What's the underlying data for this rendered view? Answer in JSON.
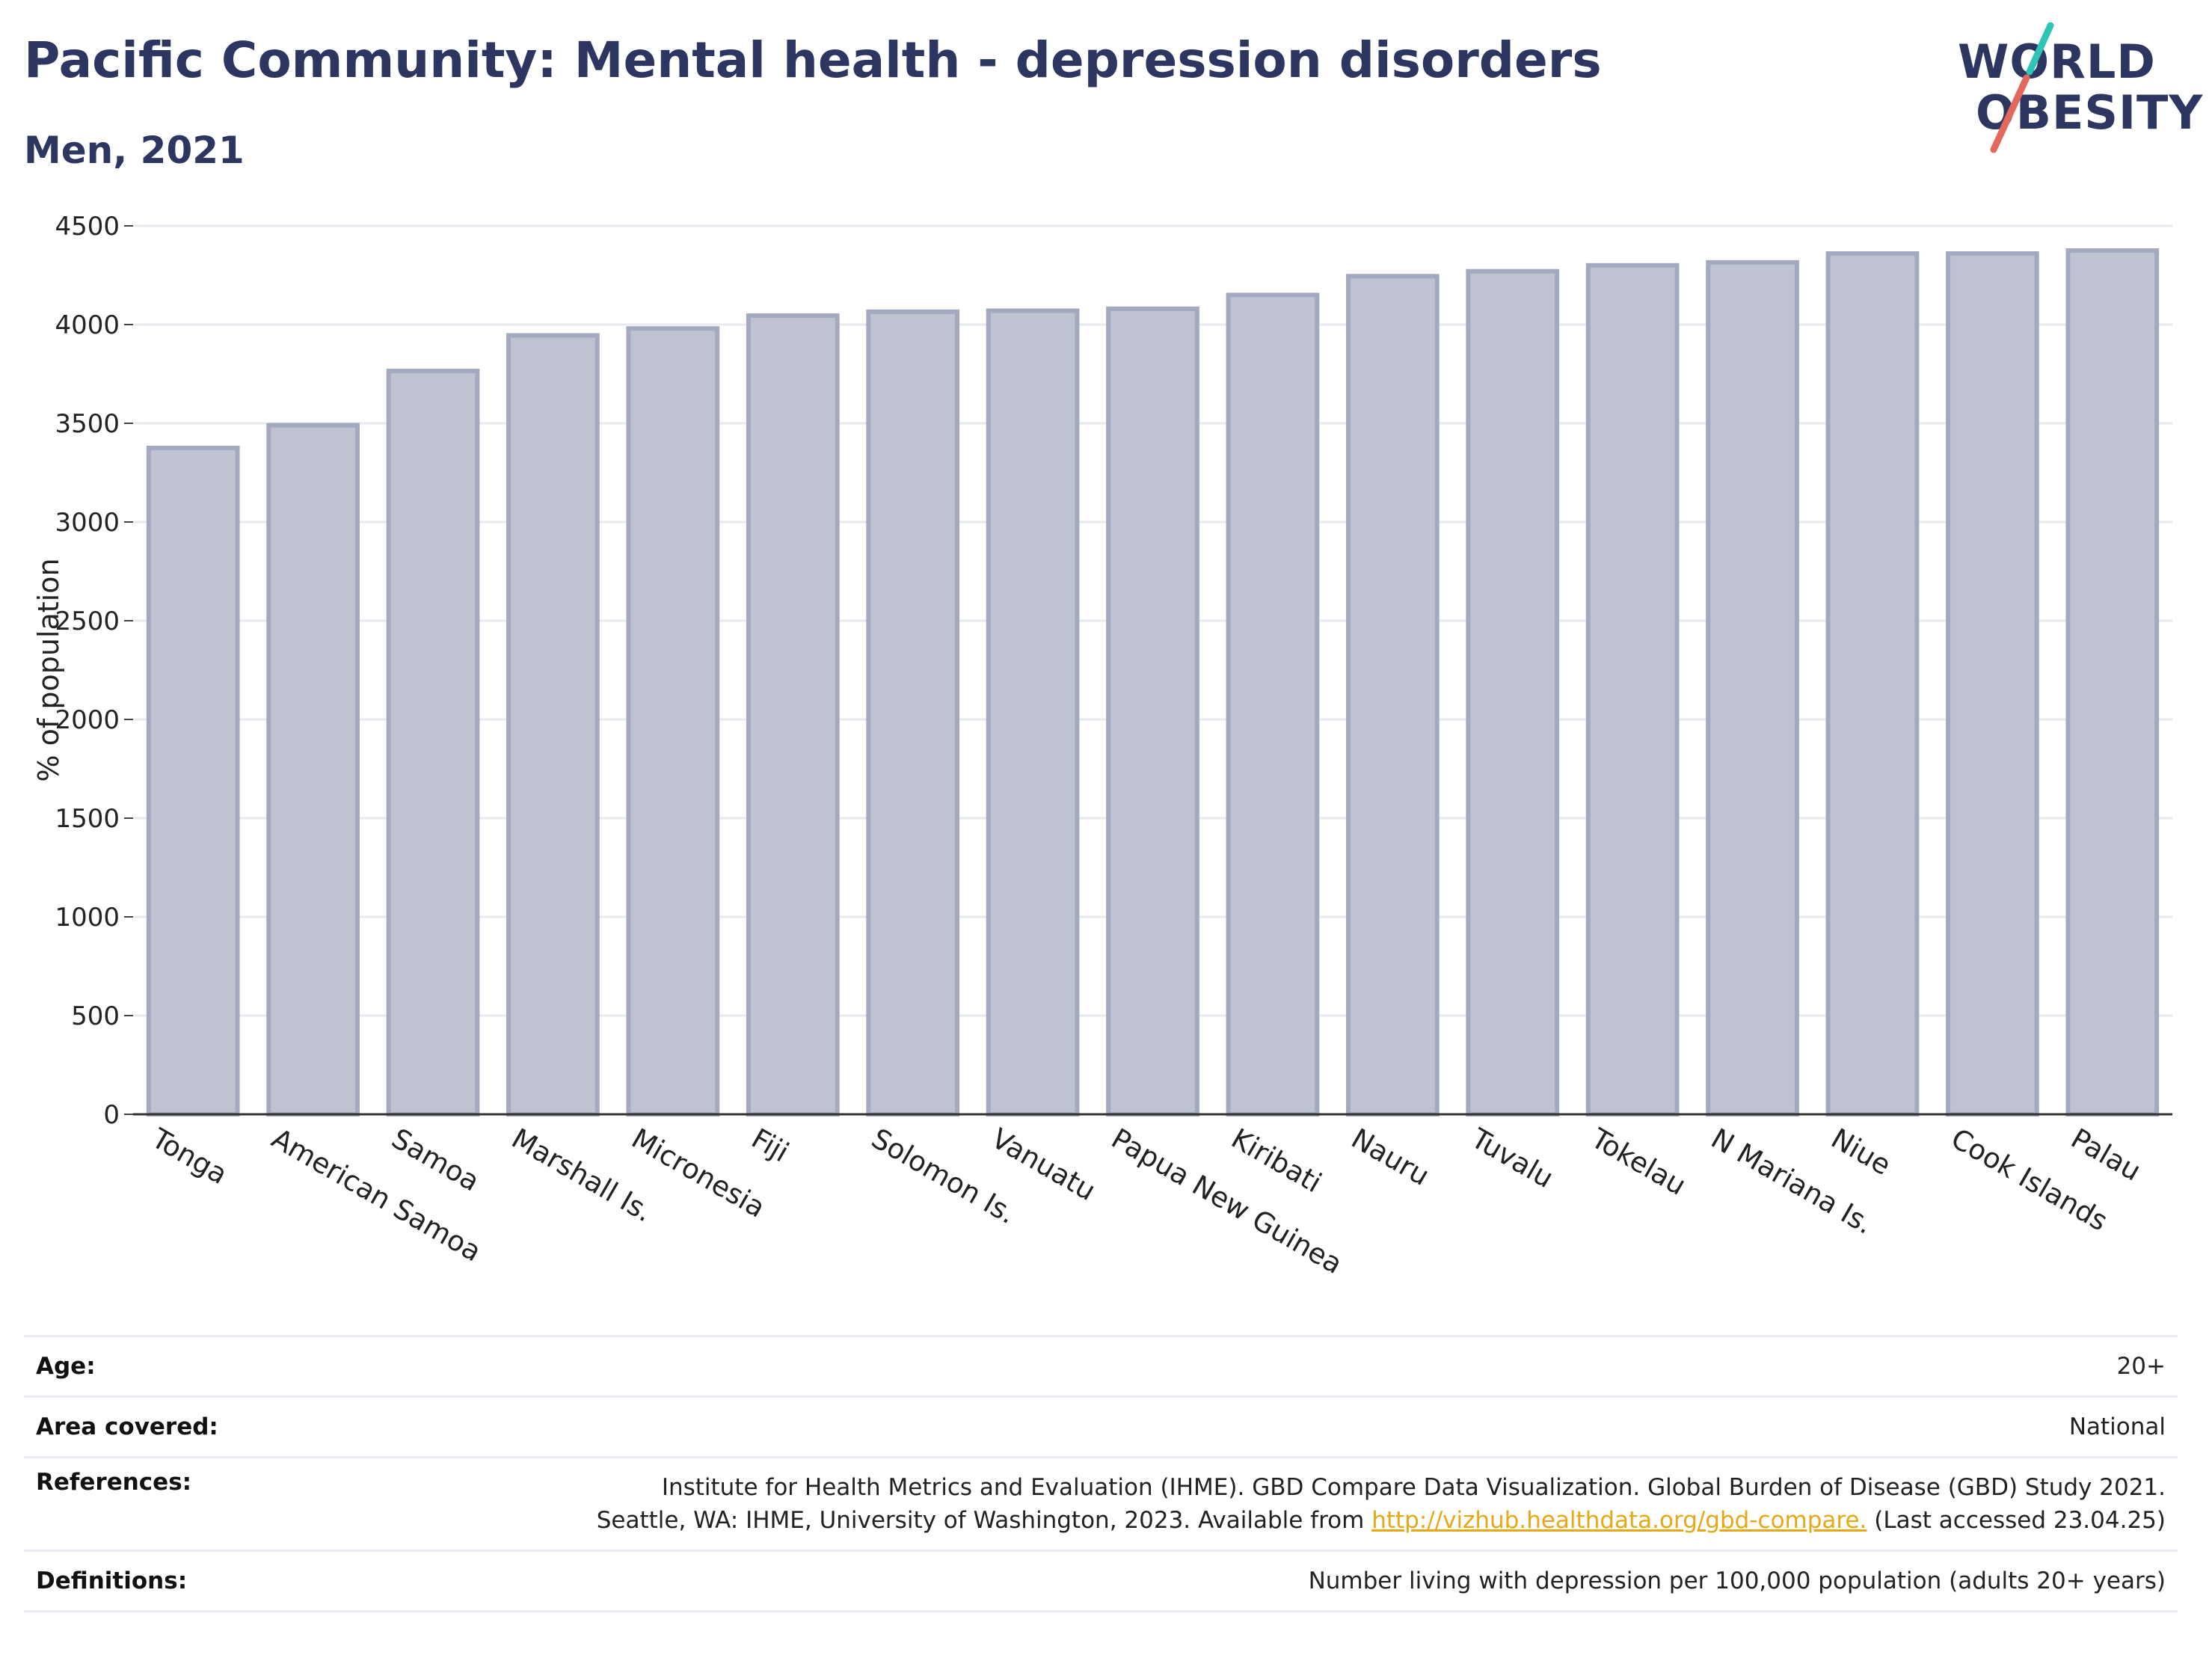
{
  "header": {
    "title": "Pacific Community: Mental health - depression disorders",
    "subtitle": "Men, 2021"
  },
  "logo": {
    "line1": "WORLD",
    "line2": "OBESITY",
    "accent_colors": [
      "#2ec4b6",
      "#e4685d"
    ]
  },
  "chart_data": {
    "type": "bar",
    "categories": [
      "Tonga",
      "American Samoa",
      "Samoa",
      "Marshall Is.",
      "Micronesia",
      "Fiji",
      "Solomon Is.",
      "Vanuatu",
      "Papua New Guinea",
      "Kiribati",
      "Nauru",
      "Tuvalu",
      "Tokelau",
      "N Mariana Is.",
      "Niue",
      "Cook Islands",
      "Palau"
    ],
    "values": [
      3375,
      3490,
      3765,
      3945,
      3980,
      4045,
      4065,
      4070,
      4080,
      4150,
      4245,
      4270,
      4300,
      4315,
      4360,
      4360,
      4375
    ],
    "ylabel": "% of population",
    "ylim": [
      0,
      4500
    ],
    "yticks": [
      0,
      500,
      1000,
      1500,
      2000,
      2500,
      3000,
      3500,
      4000,
      4500
    ],
    "grid": true,
    "bar_fill": "#bfc3d1",
    "bar_stroke": "#a3a9bf"
  },
  "meta": {
    "age_label": "Age:",
    "age_value": "20+",
    "area_label": "Area covered:",
    "area_value": "National",
    "references_label": "References:",
    "references_line1": "Institute for Health Metrics and Evaluation (IHME). GBD Compare Data Visualization. Global Burden of Disease (GBD) Study 2021.",
    "references_line2_pre": "Seattle, WA: IHME, University of Washington, 2023. Available from",
    "references_link": "http://vizhub.healthdata.org/gbd-compare.",
    "references_line2_post": "(Last accessed 23.04.25)",
    "definitions_label": "Definitions:",
    "definitions_value": "Number living with depression per 100,000 population (adults 20+ years)"
  }
}
